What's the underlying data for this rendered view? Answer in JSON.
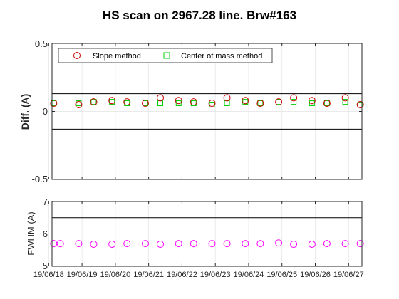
{
  "chart_data": [
    {
      "type": "scatter",
      "title": "HS scan on 2967.28 line. Brw#163",
      "ylabel": "Diff.  (A)",
      "xlabel": "",
      "ylim": [
        -0.5,
        0.5
      ],
      "yticks": [
        "-0.5",
        "0",
        "0.5"
      ],
      "grid": true,
      "legend_position": "top",
      "reference_lines": [
        0.13,
        -0.13
      ],
      "series": [
        {
          "name": "Slope method",
          "marker": "circle",
          "color": "#cc0000",
          "x": [
            18.15,
            18.9,
            19.35,
            19.9,
            20.35,
            20.9,
            21.35,
            21.9,
            22.35,
            22.9,
            23.35,
            23.9,
            24.35,
            24.9,
            25.35,
            25.9,
            26.35,
            26.9,
            27.35
          ],
          "y": [
            0.06,
            0.05,
            0.07,
            0.08,
            0.07,
            0.06,
            0.1,
            0.08,
            0.07,
            0.06,
            0.1,
            0.08,
            0.06,
            0.07,
            0.1,
            0.08,
            0.06,
            0.1,
            0.05
          ]
        },
        {
          "name": "Center of mass method",
          "marker": "square",
          "color": "#00cc00",
          "x": [
            18.15,
            18.9,
            19.35,
            19.9,
            20.35,
            20.9,
            21.35,
            21.9,
            22.35,
            22.9,
            23.35,
            23.9,
            24.35,
            24.9,
            25.35,
            25.9,
            26.35,
            26.9,
            27.35
          ],
          "y": [
            0.06,
            0.06,
            0.07,
            0.07,
            0.06,
            0.06,
            0.06,
            0.06,
            0.06,
            0.05,
            0.06,
            0.07,
            0.06,
            0.07,
            0.07,
            0.06,
            0.06,
            0.07,
            0.05
          ]
        }
      ]
    },
    {
      "type": "scatter",
      "title": "",
      "ylabel": "FWHM (A)",
      "xlabel": "",
      "ylim": [
        5,
        7
      ],
      "yticks": [
        "5",
        "6",
        "7"
      ],
      "grid": true,
      "reference_lines": [
        6.5
      ],
      "x_tick_labels": [
        "19/06/18",
        "19/06/19",
        "19/06/20",
        "19/06/21",
        "19/06/22",
        "19/06/23",
        "19/06/24",
        "19/06/25",
        "19/06/26",
        "19/06/27"
      ],
      "series": [
        {
          "marker": "circle",
          "color": "#ff00ff",
          "x": [
            18.15,
            18.35,
            18.9,
            19.35,
            19.9,
            20.35,
            20.9,
            21.35,
            21.9,
            22.35,
            22.9,
            23.35,
            23.9,
            24.35,
            24.9,
            25.35,
            25.9,
            26.35,
            26.9,
            27.35
          ],
          "y": [
            5.7,
            5.7,
            5.7,
            5.68,
            5.68,
            5.7,
            5.7,
            5.68,
            5.7,
            5.7,
            5.7,
            5.7,
            5.7,
            5.7,
            5.72,
            5.68,
            5.68,
            5.7,
            5.7,
            5.7
          ]
        }
      ]
    }
  ],
  "x_range": [
    18.1,
    27.4
  ]
}
